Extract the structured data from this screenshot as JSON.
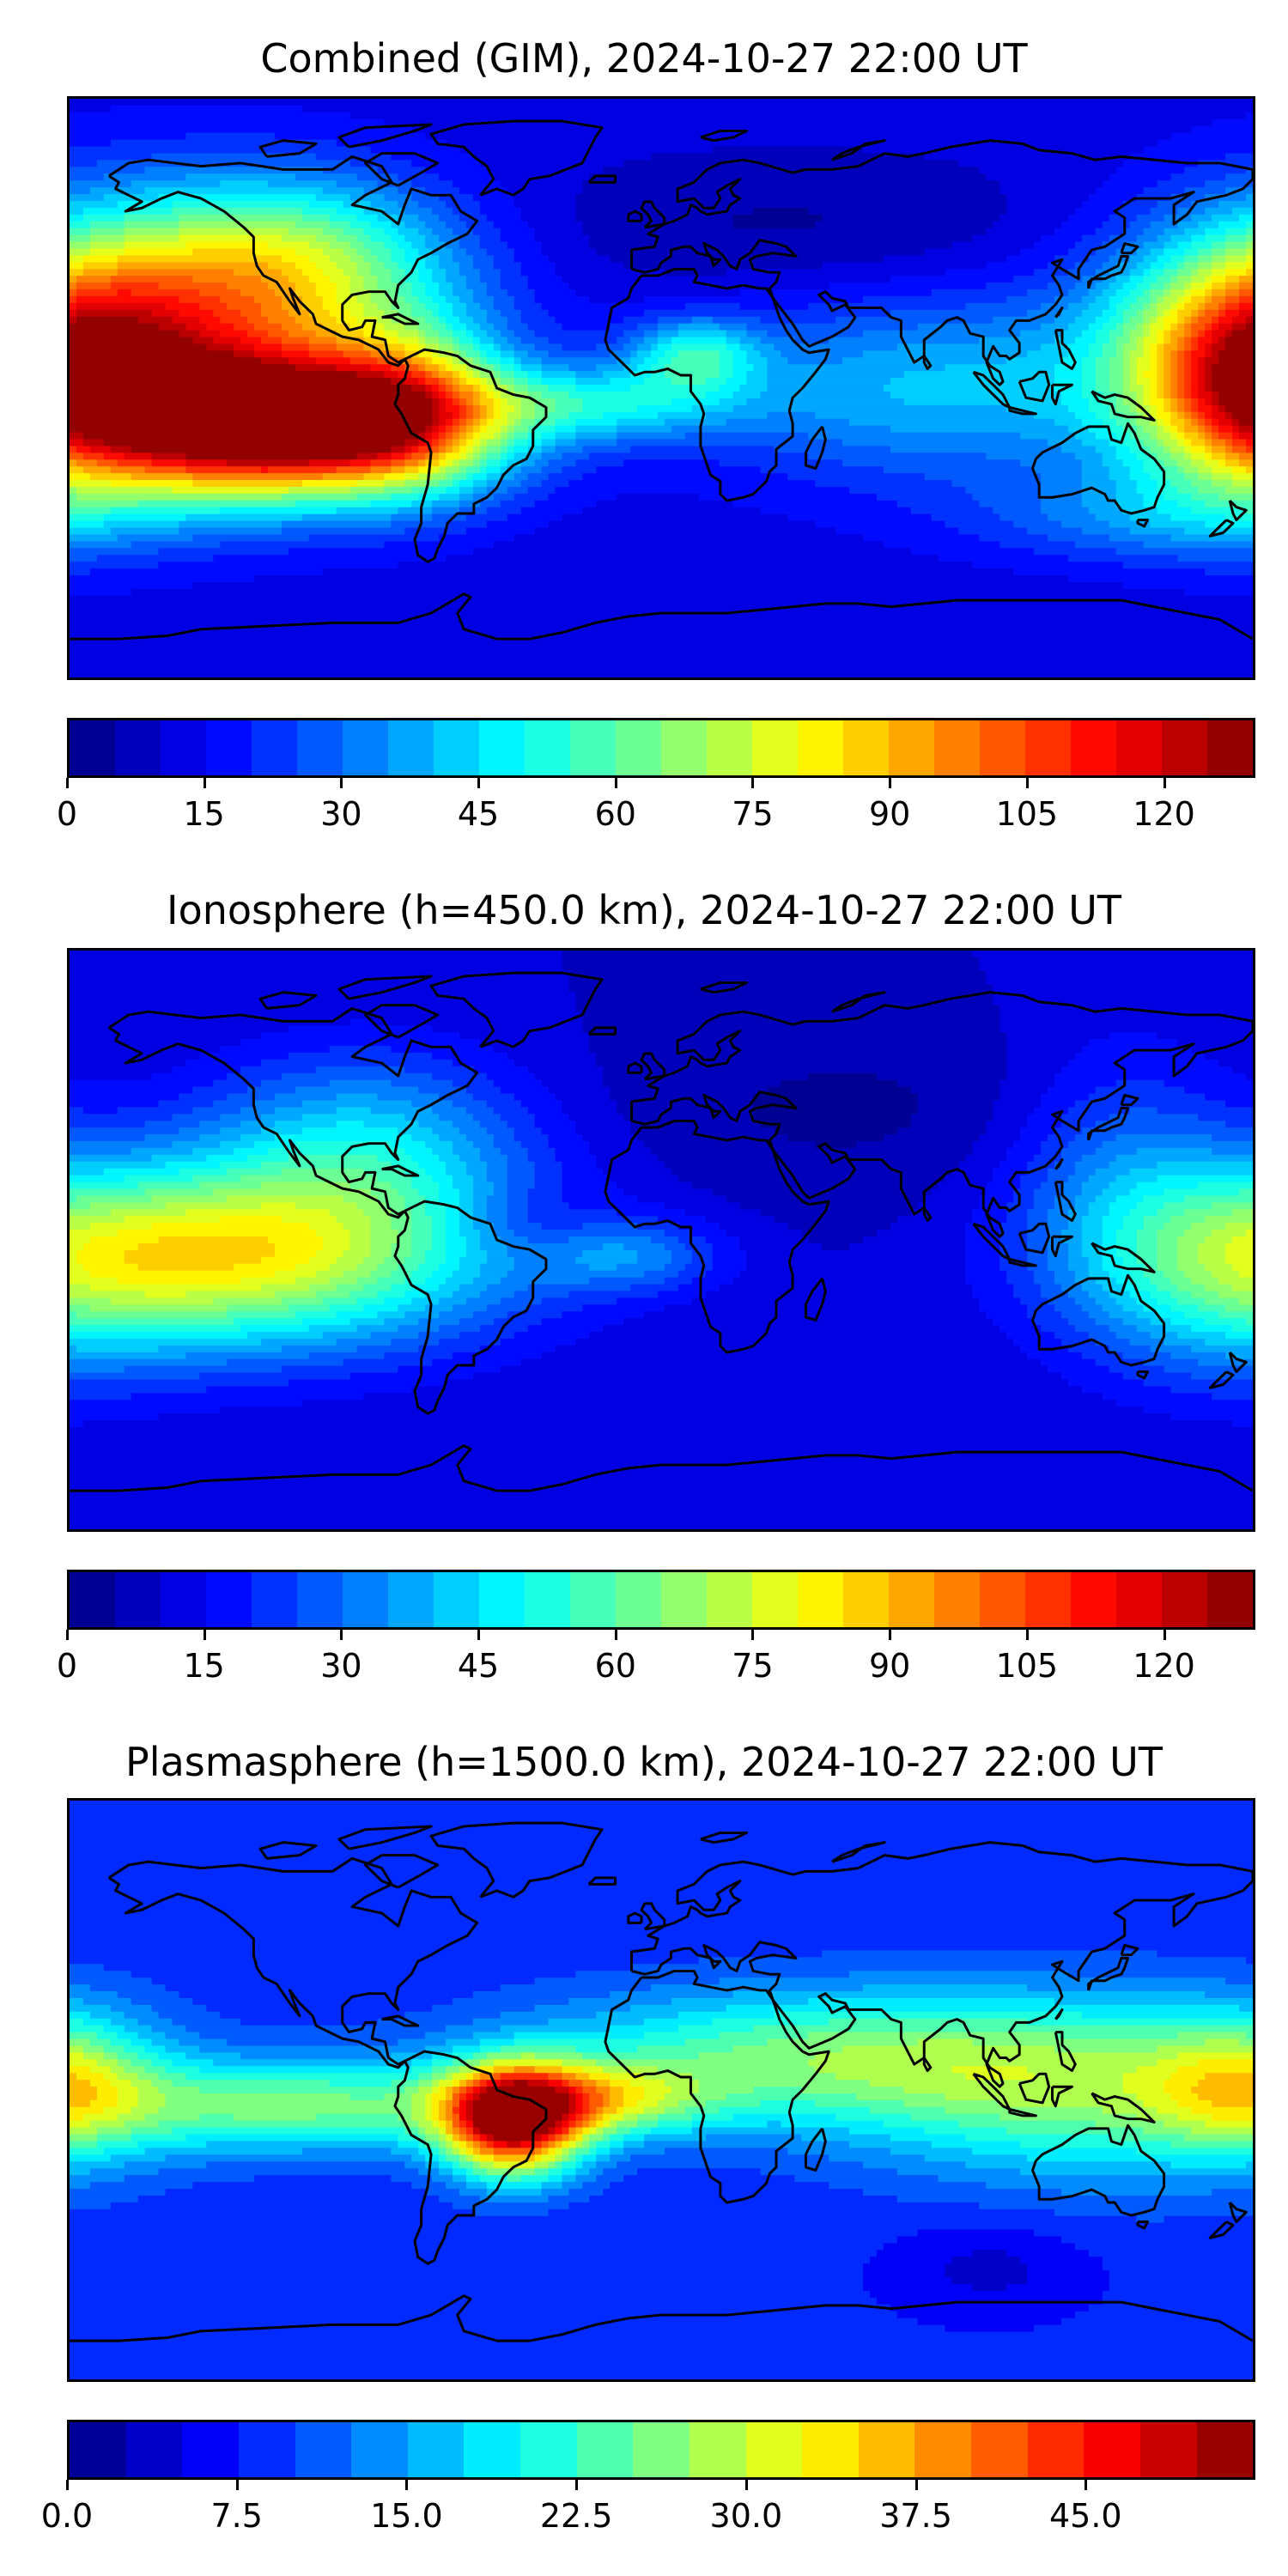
{
  "panels": [
    {
      "title": "Combined (GIM), 2024-10-27 22:00 UT",
      "field": "combined",
      "vmin": 0,
      "vmax": 130,
      "levels": 26,
      "colorbar_ticks": [
        "0",
        "15",
        "30",
        "45",
        "60",
        "75",
        "90",
        "105",
        "120"
      ],
      "tick_values": [
        0,
        15,
        30,
        45,
        60,
        75,
        90,
        105,
        120
      ]
    },
    {
      "title": "Ionosphere  (h=450.0 km), 2024-10-27 22:00 UT",
      "field": "ionosphere",
      "vmin": 0,
      "vmax": 130,
      "levels": 26,
      "colorbar_ticks": [
        "0",
        "15",
        "30",
        "45",
        "60",
        "75",
        "90",
        "105",
        "120"
      ],
      "tick_values": [
        0,
        15,
        30,
        45,
        60,
        75,
        90,
        105,
        120
      ]
    },
    {
      "title": "Plasmasphere (h=1500.0 km), 2024-10-27 22:00 UT",
      "field": "plasmasphere",
      "vmin": 0,
      "vmax": 52.5,
      "levels": 21,
      "colorbar_ticks": [
        "0.0",
        "7.5",
        "15.0",
        "22.5",
        "30.0",
        "37.5",
        "45.0"
      ],
      "tick_values": [
        0,
        7.5,
        15,
        22.5,
        30,
        37.5,
        45
      ]
    }
  ],
  "colormap": "jet",
  "colors": {
    "coastline": "#000000",
    "background": "#ffffff"
  }
}
